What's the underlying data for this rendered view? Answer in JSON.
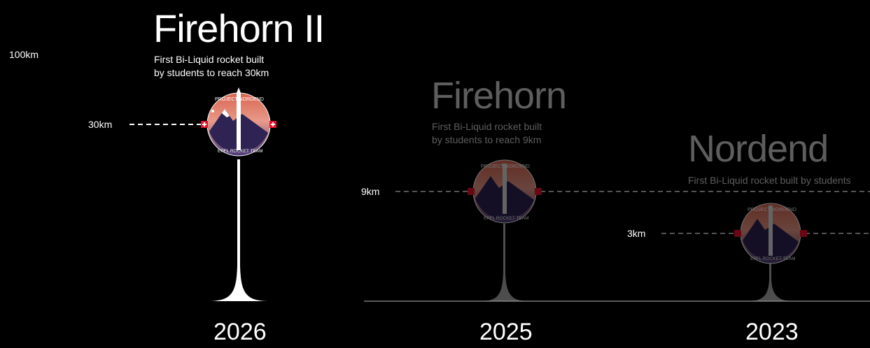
{
  "scale_top_label": "100km",
  "colors": {
    "background": "#000000",
    "active": "#ffffff",
    "inactive": "#6b6b6b",
    "badge_gradient_top": "#e07a6a",
    "badge_gradient_bottom": "#3b2a5a",
    "swiss_red": "#e8112d"
  },
  "badge": {
    "top_text": "PROJECT NORDEND",
    "bottom_text": "EPFL ROCKET TEAM"
  },
  "rockets": [
    {
      "name": "Firehorn II",
      "description_line1": "First Bi-Liquid rocket built",
      "description_line2": "by students to reach 30km",
      "altitude_label": "30km",
      "year": "2026",
      "active": true
    },
    {
      "name": "Firehorn",
      "description_line1": "First Bi-Liquid rocket built",
      "description_line2": "by students to reach 9km",
      "altitude_label": "9km",
      "year": "2025",
      "active": false
    },
    {
      "name": "Nordend",
      "description_line1": "First Bi-Liquid rocket built by students",
      "description_line2": "",
      "altitude_label": "3km",
      "year": "2023",
      "active": false
    }
  ]
}
